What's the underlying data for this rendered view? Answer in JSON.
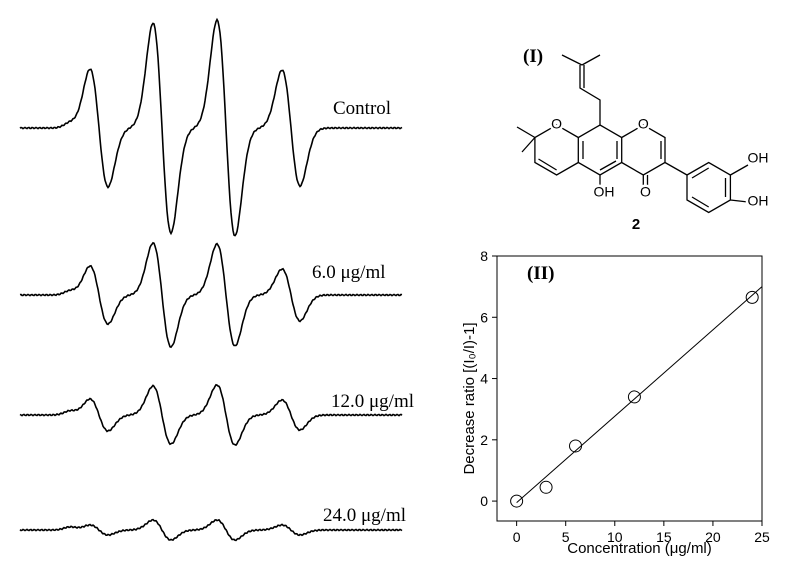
{
  "spectra": {
    "labels": [
      "Control",
      "6.0 μg/ml",
      "12.0 μg/ml",
      "24.0 μg/ml"
    ]
  },
  "structure": {
    "panel_label": "(I)",
    "compound_number": "2",
    "atoms": {
      "pyran_o": "O",
      "ring_o": "O",
      "carbonyl_o": "O",
      "oh_5": "OH",
      "oh_3p": "OH",
      "oh_4p": "OH"
    }
  },
  "chart_data": {
    "type": "scatter",
    "panel_label": "(II)",
    "x_label": "Concentration (μg/ml)",
    "y_label": "Decrease ratio [(I₀/I)-1]",
    "x": [
      0,
      3,
      6,
      12,
      24
    ],
    "values": [
      0,
      0.45,
      1.8,
      3.4,
      6.65
    ],
    "fit_line": {
      "x": [
        0,
        25
      ],
      "values": [
        -0.05,
        7.0
      ]
    },
    "xlim": [
      -2,
      25
    ],
    "ylim": [
      -0.65,
      8
    ],
    "xticks": [
      0,
      5,
      10,
      15,
      20,
      25
    ],
    "yticks": [
      0,
      2,
      4,
      6,
      8
    ]
  }
}
